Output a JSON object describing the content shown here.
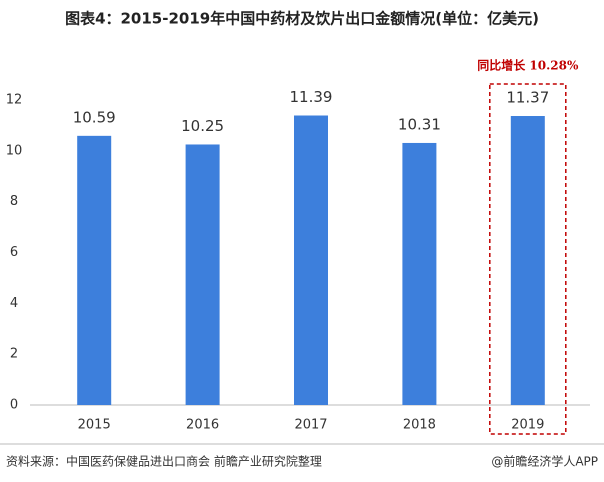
{
  "chart_data": {
    "type": "bar",
    "title": "图表4：2015-2019年中国中药材及饮片出口金额情况(单位：亿美元)",
    "categories": [
      "2015",
      "2016",
      "2017",
      "2018",
      "2019"
    ],
    "values": [
      10.59,
      10.25,
      11.39,
      10.31,
      11.37
    ],
    "color": "#3d7fdc",
    "ylim": [
      0,
      12
    ],
    "yticks": [
      0,
      2,
      4,
      6,
      8,
      10,
      12
    ],
    "grid": false,
    "annotation": "同比增长 10.28%",
    "source": "资料来源：中国医药保健品进出口商会 前瞻产业研究院整理",
    "credit": "@前瞻经济学人APP"
  }
}
